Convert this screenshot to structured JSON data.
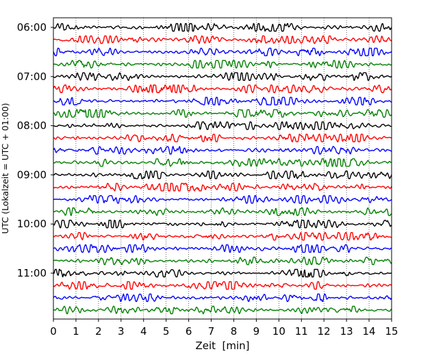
{
  "chart_data": {
    "type": "line",
    "title": "",
    "xlabel": "Zeit  [min]",
    "ylabel": "UTC (Lokalzeit = UTC + 01:00)",
    "xlim": [
      0,
      15
    ],
    "x_ticks": [
      "0",
      "1",
      "2",
      "3",
      "4",
      "5",
      "6",
      "7",
      "8",
      "9",
      "10",
      "11",
      "12",
      "13",
      "14",
      "15"
    ],
    "y_tick_labels": [
      "06:00",
      "07:00",
      "08:00",
      "09:00",
      "10:00",
      "11:00"
    ],
    "grid": "vertical dotted lines at each minute",
    "legend": "none",
    "trace_colors_cycle": [
      "#000000",
      "#ff0000",
      "#0000ff",
      "#008000"
    ],
    "series": [
      {
        "start": "06:00",
        "color": "#000000"
      },
      {
        "start": "06:15",
        "color": "#ff0000"
      },
      {
        "start": "06:30",
        "color": "#0000ff"
      },
      {
        "start": "06:45",
        "color": "#008000"
      },
      {
        "start": "07:00",
        "color": "#000000"
      },
      {
        "start": "07:15",
        "color": "#ff0000"
      },
      {
        "start": "07:30",
        "color": "#0000ff"
      },
      {
        "start": "07:45",
        "color": "#008000"
      },
      {
        "start": "08:00",
        "color": "#000000"
      },
      {
        "start": "08:15",
        "color": "#ff0000"
      },
      {
        "start": "08:30",
        "color": "#0000ff"
      },
      {
        "start": "08:45",
        "color": "#008000"
      },
      {
        "start": "09:00",
        "color": "#000000"
      },
      {
        "start": "09:15",
        "color": "#ff0000"
      },
      {
        "start": "09:30",
        "color": "#0000ff"
      },
      {
        "start": "09:45",
        "color": "#008000"
      },
      {
        "start": "10:00",
        "color": "#000000"
      },
      {
        "start": "10:15",
        "color": "#ff0000"
      },
      {
        "start": "10:30",
        "color": "#0000ff"
      },
      {
        "start": "10:45",
        "color": "#008000"
      },
      {
        "start": "11:00",
        "color": "#000000"
      },
      {
        "start": "11:15",
        "color": "#ff0000"
      },
      {
        "start": "11:30",
        "color": "#0000ff"
      },
      {
        "start": "11:45",
        "color": "#008000"
      }
    ]
  }
}
